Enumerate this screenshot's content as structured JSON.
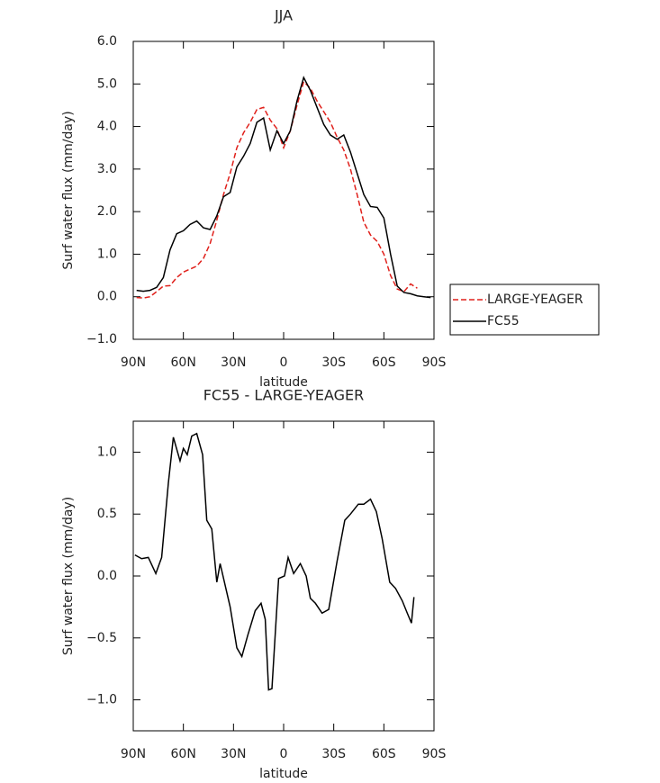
{
  "chart_data": [
    {
      "type": "line",
      "title": "JJA",
      "xlabel": "latitude",
      "ylabel": "Surf water flux (mm/day)",
      "x": [
        88,
        84,
        80,
        76,
        72,
        68,
        64,
        60,
        56,
        52,
        48,
        44,
        40,
        36,
        32,
        28,
        24,
        20,
        16,
        12,
        8,
        4,
        0,
        -4,
        -8,
        -12,
        -16,
        -20,
        -24,
        -28,
        -32,
        -36,
        -40,
        -44,
        -48,
        -52,
        -56,
        -60,
        -64,
        -68,
        -72,
        -76,
        -80,
        -84,
        -88
      ],
      "series": [
        {
          "name": "LARGE-YEAGER",
          "color": "#e0201b",
          "linestyle": "dashed",
          "values": [
            -0.02,
            -0.03,
            0.0,
            0.12,
            0.25,
            0.26,
            0.45,
            0.58,
            0.65,
            0.72,
            0.9,
            1.25,
            1.8,
            2.4,
            2.9,
            3.5,
            3.85,
            4.1,
            4.4,
            4.45,
            4.15,
            3.95,
            3.5,
            3.9,
            4.5,
            5.05,
            4.9,
            4.6,
            4.35,
            4.1,
            3.75,
            3.45,
            3.0,
            2.4,
            1.75,
            1.45,
            1.3,
            1.0,
            0.5,
            0.18,
            0.12,
            0.3,
            0.2,
            null,
            null
          ]
        },
        {
          "name": "FC55",
          "color": "#000000",
          "linestyle": "solid",
          "values": [
            0.15,
            0.13,
            0.15,
            0.22,
            0.45,
            1.1,
            1.48,
            1.55,
            1.7,
            1.78,
            1.62,
            1.58,
            1.9,
            2.35,
            2.45,
            3.05,
            3.3,
            3.6,
            4.1,
            4.2,
            3.45,
            3.9,
            3.6,
            3.9,
            4.6,
            5.15,
            4.85,
            4.45,
            4.05,
            3.8,
            3.7,
            3.8,
            3.4,
            2.9,
            2.4,
            2.12,
            2.1,
            1.85,
            1.0,
            0.25,
            0.1,
            0.07,
            0.02,
            0.0,
            -0.02
          ]
        }
      ],
      "xlim": [
        90,
        -90
      ],
      "xticks": [
        {
          "value": 90,
          "label": "90N"
        },
        {
          "value": 60,
          "label": "60N"
        },
        {
          "value": 30,
          "label": "30N"
        },
        0,
        {
          "value": -30,
          "label": "30S"
        },
        {
          "value": -60,
          "label": "60S"
        },
        {
          "value": -90,
          "label": "90S"
        }
      ],
      "ylim": [
        -1,
        6
      ],
      "yticks": [
        {
          "value": -1,
          "label": "−1.0"
        },
        {
          "value": 0,
          "label": "0.0"
        },
        {
          "value": 1,
          "label": "1.0"
        },
        {
          "value": 2,
          "label": "2.0"
        },
        {
          "value": 3,
          "label": "3.0"
        },
        {
          "value": 4,
          "label": "4.0"
        },
        {
          "value": 5,
          "label": "5.0"
        },
        {
          "value": 6,
          "label": "6.0"
        }
      ],
      "legend": "right"
    },
    {
      "type": "line",
      "title": "FC55 - LARGE-YEAGER",
      "xlabel": "latitude",
      "ylabel": "Surf water flux (mm/day)",
      "x": [
        89,
        85,
        81,
        76.5,
        73,
        69,
        66,
        62,
        60,
        57.7,
        55,
        52,
        48.5,
        46,
        43,
        40,
        38,
        32,
        28,
        25,
        21.5,
        17,
        13.5,
        11,
        9,
        7,
        3,
        -0.5,
        -2.7,
        -6,
        -10,
        -13.5,
        -16,
        -19,
        -23,
        -27,
        -32,
        -36.6,
        -40,
        -44.7,
        -48,
        -52,
        -55.5,
        -59,
        -63.5,
        -67,
        -71,
        -74,
        -76.5,
        -78
      ],
      "series": [
        {
          "name": "FC55 - LARGE-YEAGER",
          "color": "#000000",
          "linestyle": "solid",
          "values": [
            0.17,
            0.14,
            0.15,
            0.02,
            0.15,
            0.75,
            1.12,
            0.93,
            1.03,
            0.98,
            1.13,
            1.15,
            0.98,
            0.45,
            0.38,
            -0.05,
            0.1,
            -0.25,
            -0.58,
            -0.65,
            -0.48,
            -0.28,
            -0.22,
            -0.35,
            -0.92,
            -0.91,
            -0.02,
            0.0,
            0.15,
            0.02,
            0.1,
            0.0,
            -0.18,
            -0.22,
            -0.3,
            -0.27,
            0.12,
            0.45,
            0.5,
            0.58,
            0.58,
            0.62,
            0.52,
            0.3,
            -0.05,
            -0.1,
            -0.2,
            -0.3,
            -0.38,
            -0.17
          ]
        }
      ],
      "xlim": [
        90,
        -90
      ],
      "xticks": [
        {
          "value": 90,
          "label": "90N"
        },
        {
          "value": 60,
          "label": "60N"
        },
        {
          "value": 30,
          "label": "30N"
        },
        0,
        {
          "value": -30,
          "label": "30S"
        },
        {
          "value": -60,
          "label": "60S"
        },
        {
          "value": -90,
          "label": "90S"
        }
      ],
      "ylim": [
        -1.25,
        1.25
      ],
      "yticks": [
        {
          "value": -1,
          "label": "−1.0"
        },
        {
          "value": -0.5,
          "label": "−0.5"
        },
        {
          "value": 0,
          "label": "0.0"
        },
        0.5,
        {
          "value": 1,
          "label": "1.0"
        }
      ]
    }
  ]
}
